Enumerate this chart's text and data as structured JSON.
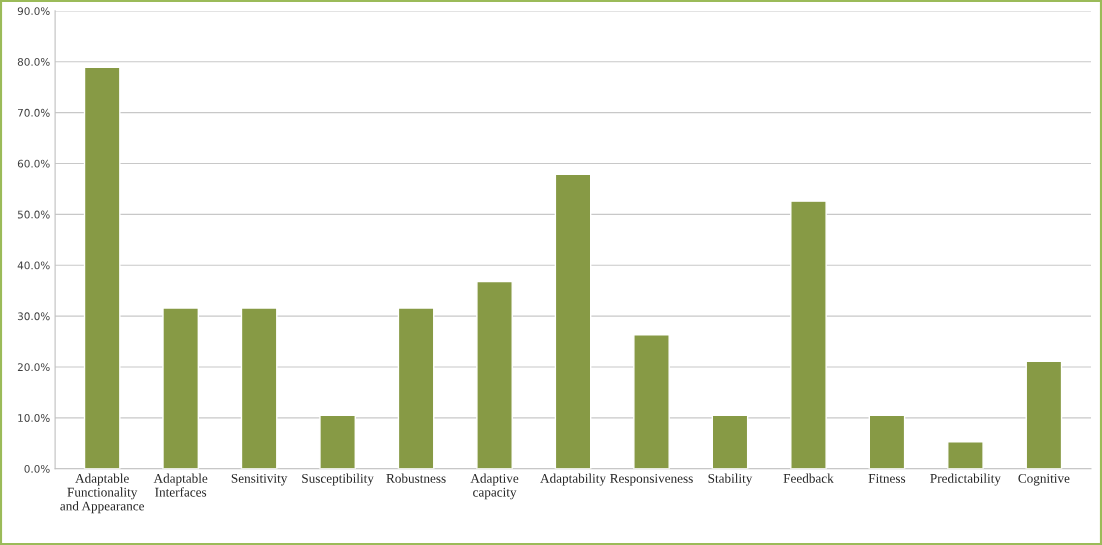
{
  "chart_data": {
    "type": "bar",
    "categories": [
      "Adaptable\nFunctionality\nand Appearance",
      "Adaptable\nInterfaces",
      "Sensitivity",
      "Susceptibility",
      "Robustness",
      "Adaptive\ncapacity",
      "Adaptability",
      "Responsiveness",
      "Stability",
      "Feedback",
      "Fitness",
      "Predictability",
      "Cognitive"
    ],
    "values": [
      78.9,
      31.6,
      31.6,
      10.5,
      31.6,
      36.8,
      57.9,
      26.3,
      10.5,
      52.6,
      10.5,
      5.3,
      21.1
    ],
    "color": "#879a45",
    "ylim": [
      0,
      90
    ],
    "yticks": [
      {
        "value": 0,
        "label": "0.0%"
      },
      {
        "value": 10,
        "label": "10.0%"
      },
      {
        "value": 20,
        "label": "20.0%"
      },
      {
        "value": 30,
        "label": "30.0%"
      },
      {
        "value": 40,
        "label": "40.0%"
      },
      {
        "value": 50,
        "label": "50.0%"
      },
      {
        "value": 60,
        "label": "60.0%"
      },
      {
        "value": 70,
        "label": "70.0%"
      },
      {
        "value": 80,
        "label": "80.0%"
      },
      {
        "value": 90,
        "label": "90.0%"
      }
    ],
    "grid": "y",
    "legend": false
  }
}
